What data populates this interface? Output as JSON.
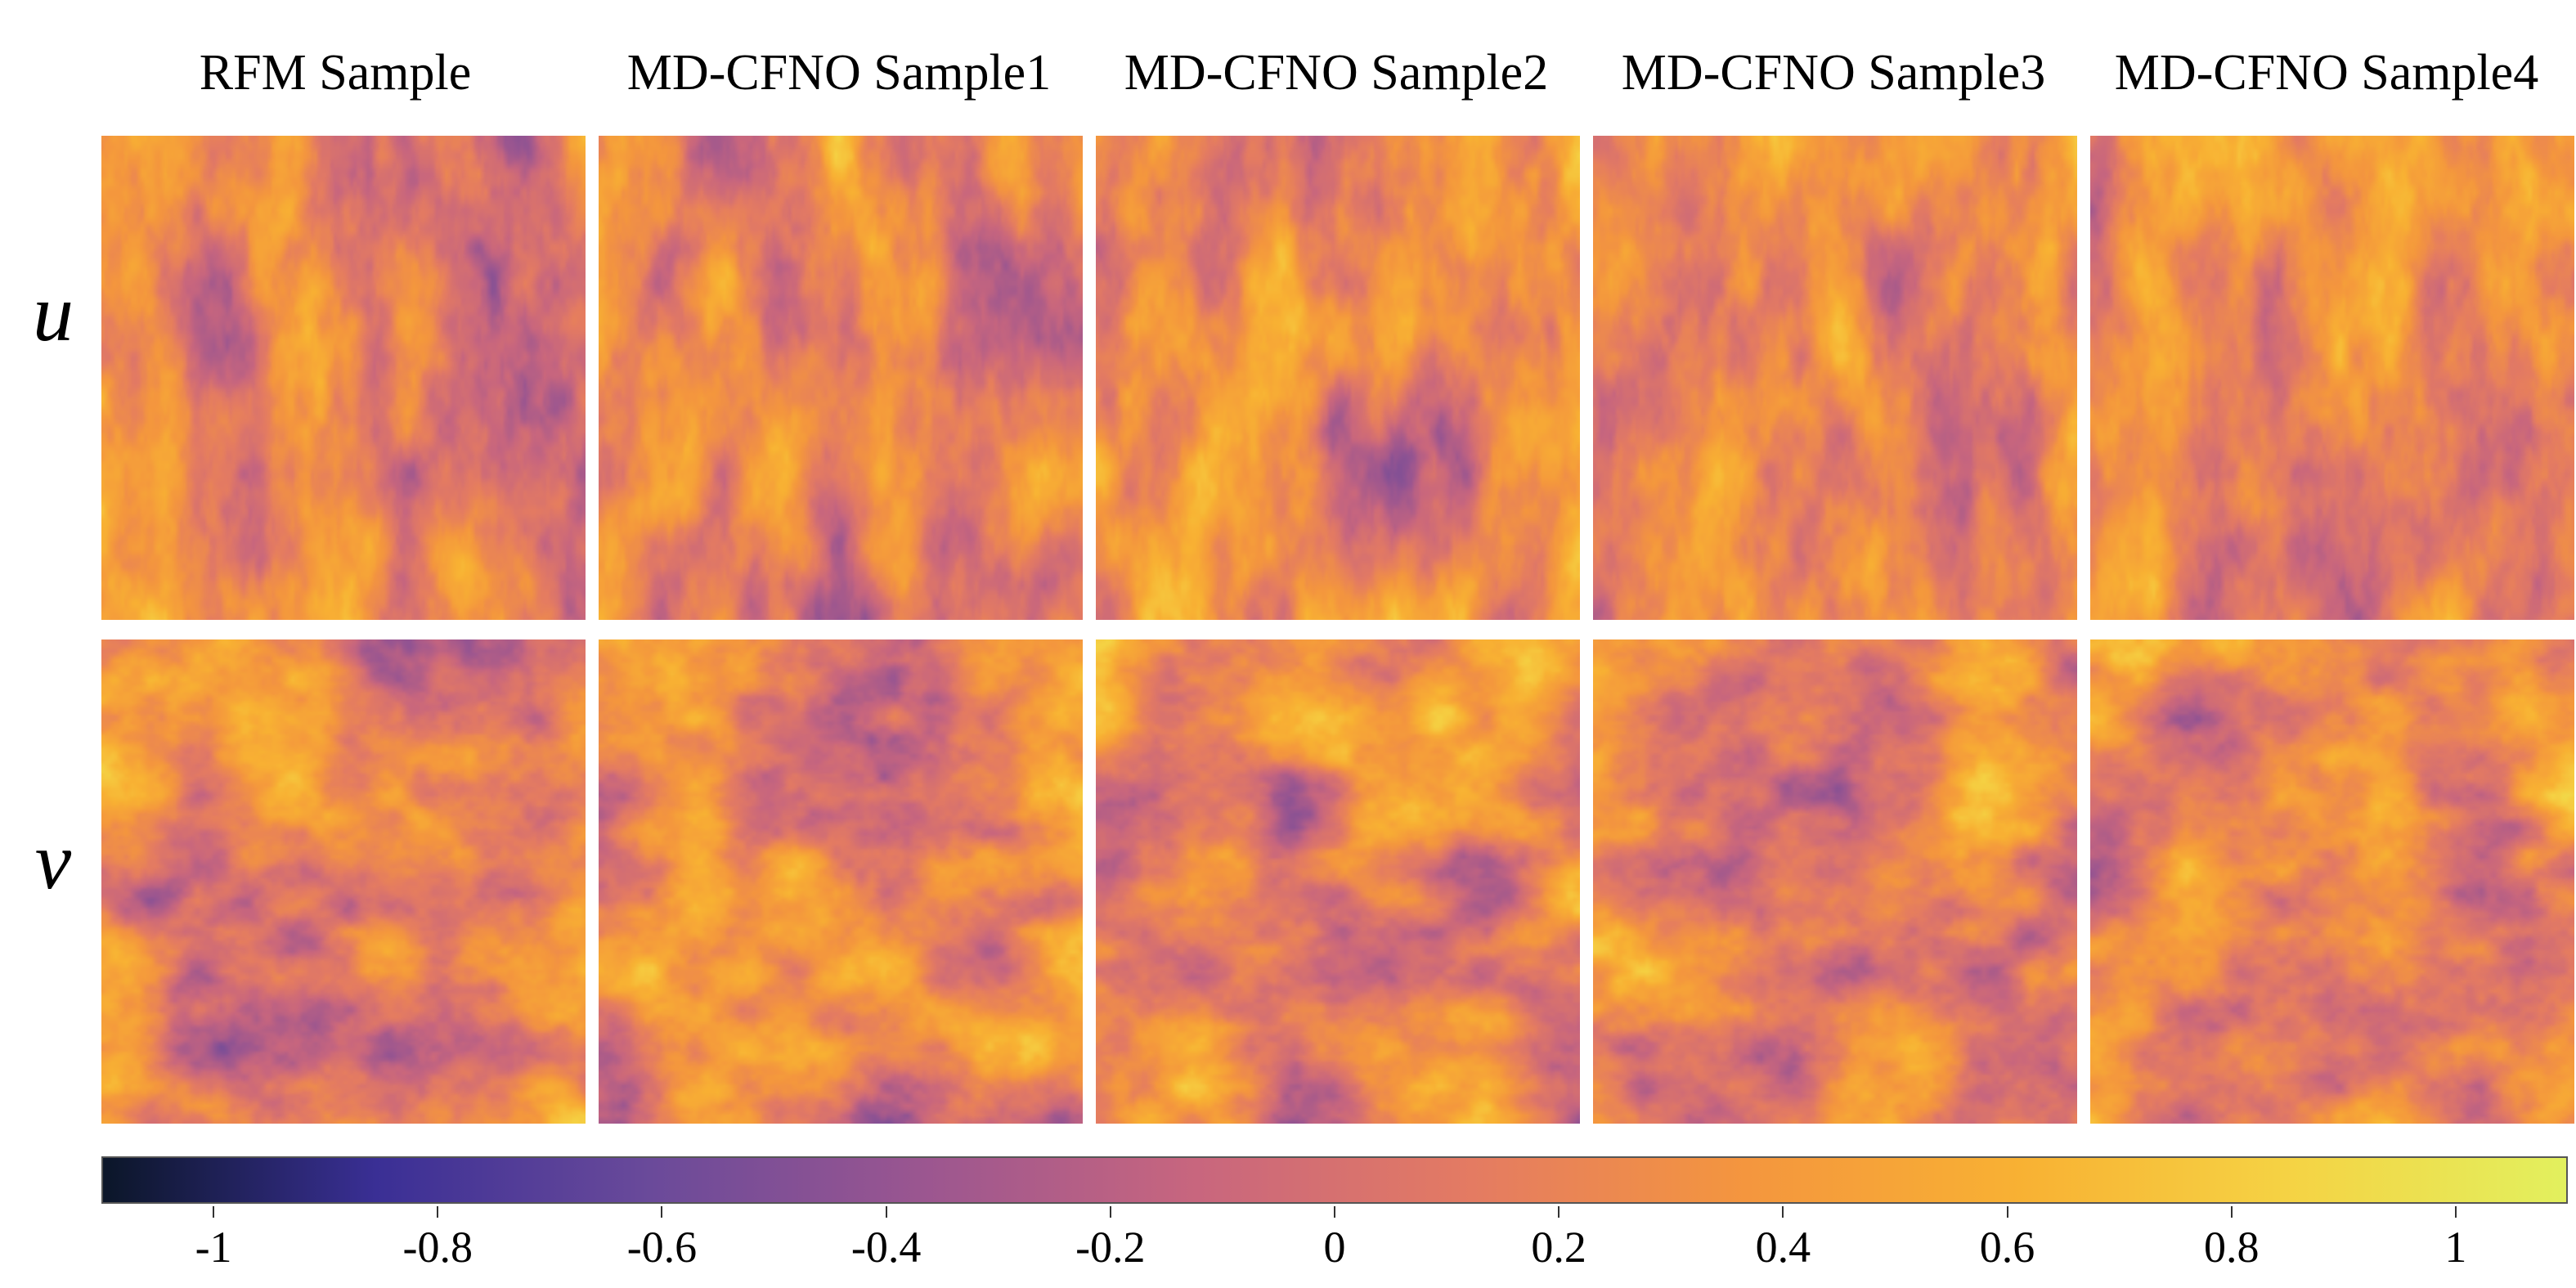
{
  "figure": {
    "columns": [
      "RFM Sample",
      "MD-CFNO Sample1",
      "MD-CFNO Sample2",
      "MD-CFNO Sample3",
      "MD-CFNO Sample4"
    ],
    "rows": [
      "u",
      "v"
    ]
  },
  "chart_data": {
    "type": "heatmap",
    "title": "",
    "column_titles": [
      "RFM Sample",
      "MD-CFNO Sample1",
      "MD-CFNO Sample2",
      "MD-CFNO Sample3",
      "MD-CFNO Sample4"
    ],
    "row_labels": [
      "u",
      "v"
    ],
    "colorbar": {
      "range": [
        -1.1,
        1.1
      ],
      "ticks": [
        -1,
        -0.8,
        -0.6,
        -0.4,
        -0.2,
        0,
        0.2,
        0.4,
        0.6,
        0.8,
        1
      ],
      "tick_labels": [
        "-1",
        "-0.8",
        "-0.6",
        "-0.4",
        "-0.2",
        "0",
        "0.2",
        "0.4",
        "0.6",
        "0.8",
        "1"
      ],
      "orientation": "horizontal",
      "colormap": [
        "#0b1628",
        "#3a2f95",
        "#6a4a9a",
        "#9b5690",
        "#c8667e",
        "#e47b62",
        "#f4963e",
        "#f8b133",
        "#f5d344",
        "#e2f05e"
      ]
    },
    "panels": [
      {
        "row": "u",
        "column": "RFM Sample",
        "pattern": "vertically streaked random field"
      },
      {
        "row": "u",
        "column": "MD-CFNO Sample1",
        "pattern": "vertically streaked random field"
      },
      {
        "row": "u",
        "column": "MD-CFNO Sample2",
        "pattern": "vertically streaked random field"
      },
      {
        "row": "u",
        "column": "MD-CFNO Sample3",
        "pattern": "vertically streaked random field"
      },
      {
        "row": "u",
        "column": "MD-CFNO Sample4",
        "pattern": "vertically streaked random field"
      },
      {
        "row": "v",
        "column": "RFM Sample",
        "pattern": "horizontally blotched random field"
      },
      {
        "row": "v",
        "column": "MD-CFNO Sample1",
        "pattern": "horizontally blotched random field"
      },
      {
        "row": "v",
        "column": "MD-CFNO Sample2",
        "pattern": "horizontally blotched random field"
      },
      {
        "row": "v",
        "column": "MD-CFNO Sample3",
        "pattern": "horizontally blotched random field"
      },
      {
        "row": "v",
        "column": "MD-CFNO Sample4",
        "pattern": "horizontally blotched random field"
      }
    ]
  }
}
